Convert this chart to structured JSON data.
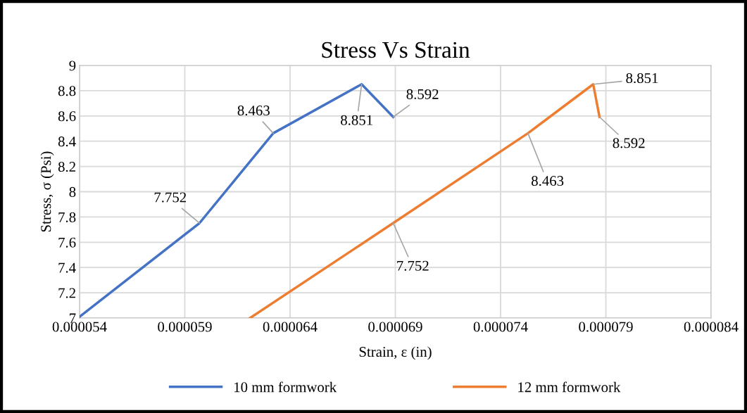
{
  "chart_data": {
    "type": "line",
    "title": "Stress Vs Strain",
    "xlabel": "Strain, ε (in)",
    "ylabel": "Stress, σ (Psi)",
    "xlim": [
      5.4e-05,
      8.4e-05
    ],
    "xticks": [
      {
        "value": 5.4e-05,
        "label": "0.000054"
      },
      {
        "value": 5.9e-05,
        "label": "0.000059"
      },
      {
        "value": 6.4e-05,
        "label": "0.000064"
      },
      {
        "value": 6.9e-05,
        "label": "0.000069"
      },
      {
        "value": 7.4e-05,
        "label": "0.000074"
      },
      {
        "value": 7.9e-05,
        "label": "0.000079"
      },
      {
        "value": 8.4e-05,
        "label": "0.000084"
      }
    ],
    "ylim": [
      7,
      9
    ],
    "yticks": [
      7,
      7.2,
      7.4,
      7.6,
      7.8,
      8,
      8.2,
      8.4,
      8.6,
      8.8,
      9
    ],
    "grid": true,
    "legend": "bottom",
    "marker": "none",
    "line_style": "solid",
    "series": [
      {
        "name": "10 mm formwork",
        "color": "#4472c4",
        "x": [
          5.4e-05,
          5.97e-05,
          6.32e-05,
          6.74e-05,
          6.89e-05
        ],
        "values": [
          7.01,
          7.752,
          8.463,
          8.851,
          8.592
        ],
        "value_labels": [
          null,
          "7.752",
          "8.463",
          "8.851",
          "8.592"
        ]
      },
      {
        "name": "12 mm formwork",
        "color": "#ed7d31",
        "x": [
          6.21e-05,
          6.89e-05,
          7.53e-05,
          7.84e-05,
          7.87e-05
        ],
        "values": [
          7.0,
          7.752,
          8.463,
          8.851,
          8.592
        ],
        "value_labels": [
          null,
          "7.752",
          "8.463",
          "8.851",
          "8.592"
        ]
      }
    ]
  }
}
